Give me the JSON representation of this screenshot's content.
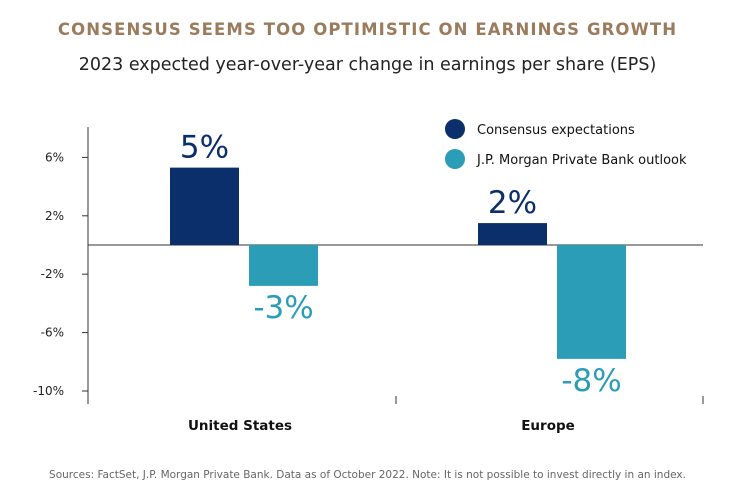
{
  "title": "CONSENSUS SEEMS TOO OPTIMISTIC ON EARNINGS GROWTH",
  "subtitle": "2023 expected year-over-year change in earnings per share (EPS)",
  "source": "Sources: FactSet, J.P. Morgan Private Bank. Data as of October 2022. Note: It is not possible to invest directly in an index.",
  "colors": {
    "consensus": "#0b2f6b",
    "jpm": "#2b9db6",
    "title": "#9b7b5c"
  },
  "chart_data": {
    "type": "bar",
    "categories": [
      "United States",
      "Europe"
    ],
    "series": [
      {
        "name": "Consensus expectations",
        "values": [
          5.3,
          1.5
        ],
        "labels": [
          "5%",
          "2%"
        ]
      },
      {
        "name": "J.P. Morgan Private Bank outlook",
        "values": [
          -2.8,
          -7.8
        ],
        "labels": [
          "-3%",
          "-8%"
        ]
      }
    ],
    "yticks": [
      6,
      2,
      -2,
      -6,
      -10
    ],
    "ytick_labels": [
      "6%",
      "2%",
      "-2%",
      "-6%",
      "-10%"
    ],
    "ylim": [
      -10,
      8
    ],
    "legend": "top-right",
    "grid": false
  }
}
